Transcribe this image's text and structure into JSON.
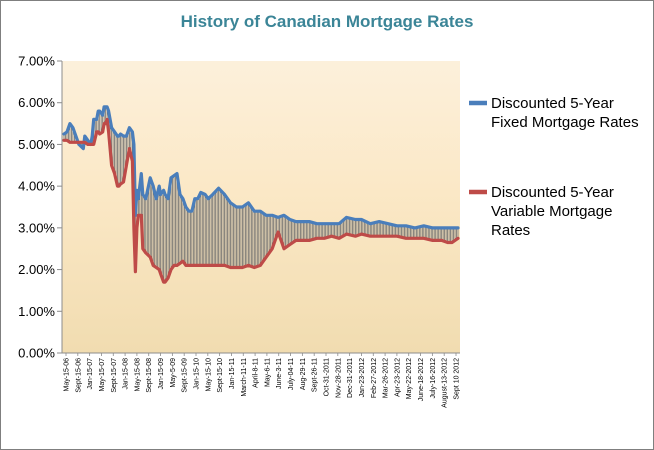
{
  "chart_data": {
    "type": "line",
    "title": "History of Canadian Mortgage Rates",
    "xlabel": "",
    "ylabel": "",
    "ylim": [
      0,
      7
    ],
    "y_tick_values": [
      0,
      1,
      2,
      3,
      4,
      5,
      6,
      7
    ],
    "y_tick_labels": [
      "0.00%",
      "1.00%",
      "2.00%",
      "3.00%",
      "4.00%",
      "5.00%",
      "6.00%",
      "7.00%"
    ],
    "x_tick_labels": [
      "May-15-06",
      "Sept-15-06",
      "Jan-15-07",
      "May-15-07",
      "Sept-15-07",
      "Jan-15-08",
      "May-15-08",
      "Sept-15-08",
      "Jan-15-09",
      "May-5-09",
      "Sept-15-09",
      "Jan-15-10",
      "May-15-10",
      "Sept-15-10",
      "Jan-15-11",
      "March-11-11",
      "April-8-11",
      "May-6-11",
      "June-3-11",
      "July-04-11",
      "Aug-29-11",
      "Sept-26-11",
      "Oct-31-2011",
      "Nov-28-2011",
      "Dec-31-2011",
      "Jan-23-2012",
      "Feb-27-2012",
      "Mar-26-2012",
      "Apr-23-2012",
      "May-22-2012",
      "June-18-2012",
      "July-16-2012",
      "August-13-2012",
      "Sept 10 2012"
    ],
    "grid": false,
    "legend_position": "right",
    "fill_between_series": true,
    "series": [
      {
        "name": "Discounted 5-Year Fixed Mortgage Rates",
        "color": "#4a7ebb",
        "x": [
          0,
          2,
          4,
          6,
          7,
          9,
          10,
          13,
          14,
          16,
          18,
          19,
          20,
          22,
          23,
          24,
          26,
          27,
          28,
          29,
          30,
          32,
          34,
          36,
          37,
          38,
          40,
          42,
          44,
          46,
          47,
          48,
          49,
          50,
          52,
          53,
          55,
          58,
          59,
          60,
          62,
          64,
          65,
          67,
          68,
          70,
          72,
          74,
          76,
          78,
          80,
          82,
          84,
          86,
          88,
          90,
          92,
          95,
          97,
          100,
          104,
          108,
          112,
          116,
          120,
          124,
          128,
          132,
          136,
          140,
          144,
          148,
          152,
          156,
          160,
          165,
          170,
          175,
          180,
          185,
          190,
          196,
          200,
          206,
          212,
          218,
          224,
          230,
          236,
          242,
          248,
          254,
          258,
          261,
          265
        ],
        "values": [
          5.25,
          5.3,
          5.5,
          5.4,
          5.3,
          5.1,
          5.0,
          4.9,
          5.2,
          5.1,
          5.0,
          5.2,
          5.6,
          5.6,
          5.8,
          5.8,
          5.7,
          5.9,
          5.9,
          5.9,
          5.8,
          5.4,
          5.3,
          5.2,
          5.2,
          5.25,
          5.2,
          5.2,
          5.4,
          5.3,
          5.0,
          3.3,
          3.9,
          3.7,
          4.3,
          3.8,
          3.7,
          4.2,
          4.1,
          4.0,
          3.7,
          4.0,
          3.8,
          3.9,
          3.8,
          3.7,
          4.2,
          4.25,
          4.3,
          3.8,
          3.7,
          3.5,
          3.4,
          3.4,
          3.7,
          3.7,
          3.85,
          3.8,
          3.7,
          3.8,
          3.95,
          3.8,
          3.6,
          3.5,
          3.5,
          3.6,
          3.4,
          3.4,
          3.3,
          3.3,
          3.25,
          3.3,
          3.2,
          3.15,
          3.15,
          3.15,
          3.1,
          3.1,
          3.1,
          3.1,
          3.25,
          3.2,
          3.2,
          3.1,
          3.15,
          3.1,
          3.05,
          3.05,
          3.0,
          3.05,
          3.0,
          3.0,
          3.0,
          3.0,
          3.0
        ]
      },
      {
        "name": "Discounted 5-Year Variable Mortgage Rates",
        "color": "#be4b48",
        "x": [
          0,
          2,
          4,
          6,
          7,
          9,
          10,
          13,
          14,
          16,
          18,
          19,
          20,
          22,
          23,
          24,
          26,
          27,
          28,
          29,
          30,
          32,
          34,
          36,
          37,
          38,
          40,
          42,
          44,
          46,
          47,
          48,
          49,
          50,
          52,
          53,
          55,
          58,
          59,
          60,
          62,
          64,
          65,
          67,
          68,
          70,
          72,
          74,
          76,
          78,
          80,
          82,
          84,
          86,
          88,
          90,
          92,
          95,
          97,
          100,
          104,
          108,
          112,
          116,
          120,
          124,
          128,
          132,
          136,
          140,
          144,
          148,
          152,
          156,
          160,
          165,
          170,
          175,
          180,
          185,
          190,
          196,
          200,
          206,
          212,
          218,
          224,
          230,
          236,
          242,
          248,
          254,
          258,
          261,
          265
        ],
        "values": [
          5.1,
          5.1,
          5.05,
          5.05,
          5.05,
          5.05,
          5.05,
          5.05,
          5.05,
          5.0,
          5.0,
          5.0,
          5.0,
          5.3,
          5.3,
          5.25,
          5.3,
          5.5,
          5.5,
          5.6,
          5.3,
          4.5,
          4.3,
          4.0,
          4.0,
          4.05,
          4.1,
          4.5,
          4.9,
          4.6,
          3.0,
          1.95,
          3.0,
          3.3,
          3.3,
          2.5,
          2.4,
          2.3,
          2.2,
          2.1,
          2.05,
          2.0,
          1.9,
          1.7,
          1.7,
          1.8,
          2.0,
          2.1,
          2.1,
          2.15,
          2.2,
          2.1,
          2.1,
          2.1,
          2.1,
          2.1,
          2.1,
          2.1,
          2.1,
          2.1,
          2.1,
          2.1,
          2.05,
          2.05,
          2.05,
          2.1,
          2.05,
          2.1,
          2.3,
          2.5,
          2.9,
          2.5,
          2.6,
          2.7,
          2.7,
          2.7,
          2.75,
          2.75,
          2.8,
          2.75,
          2.85,
          2.8,
          2.85,
          2.8,
          2.8,
          2.8,
          2.8,
          2.75,
          2.75,
          2.75,
          2.7,
          2.7,
          2.65,
          2.65,
          2.75
        ]
      }
    ]
  }
}
